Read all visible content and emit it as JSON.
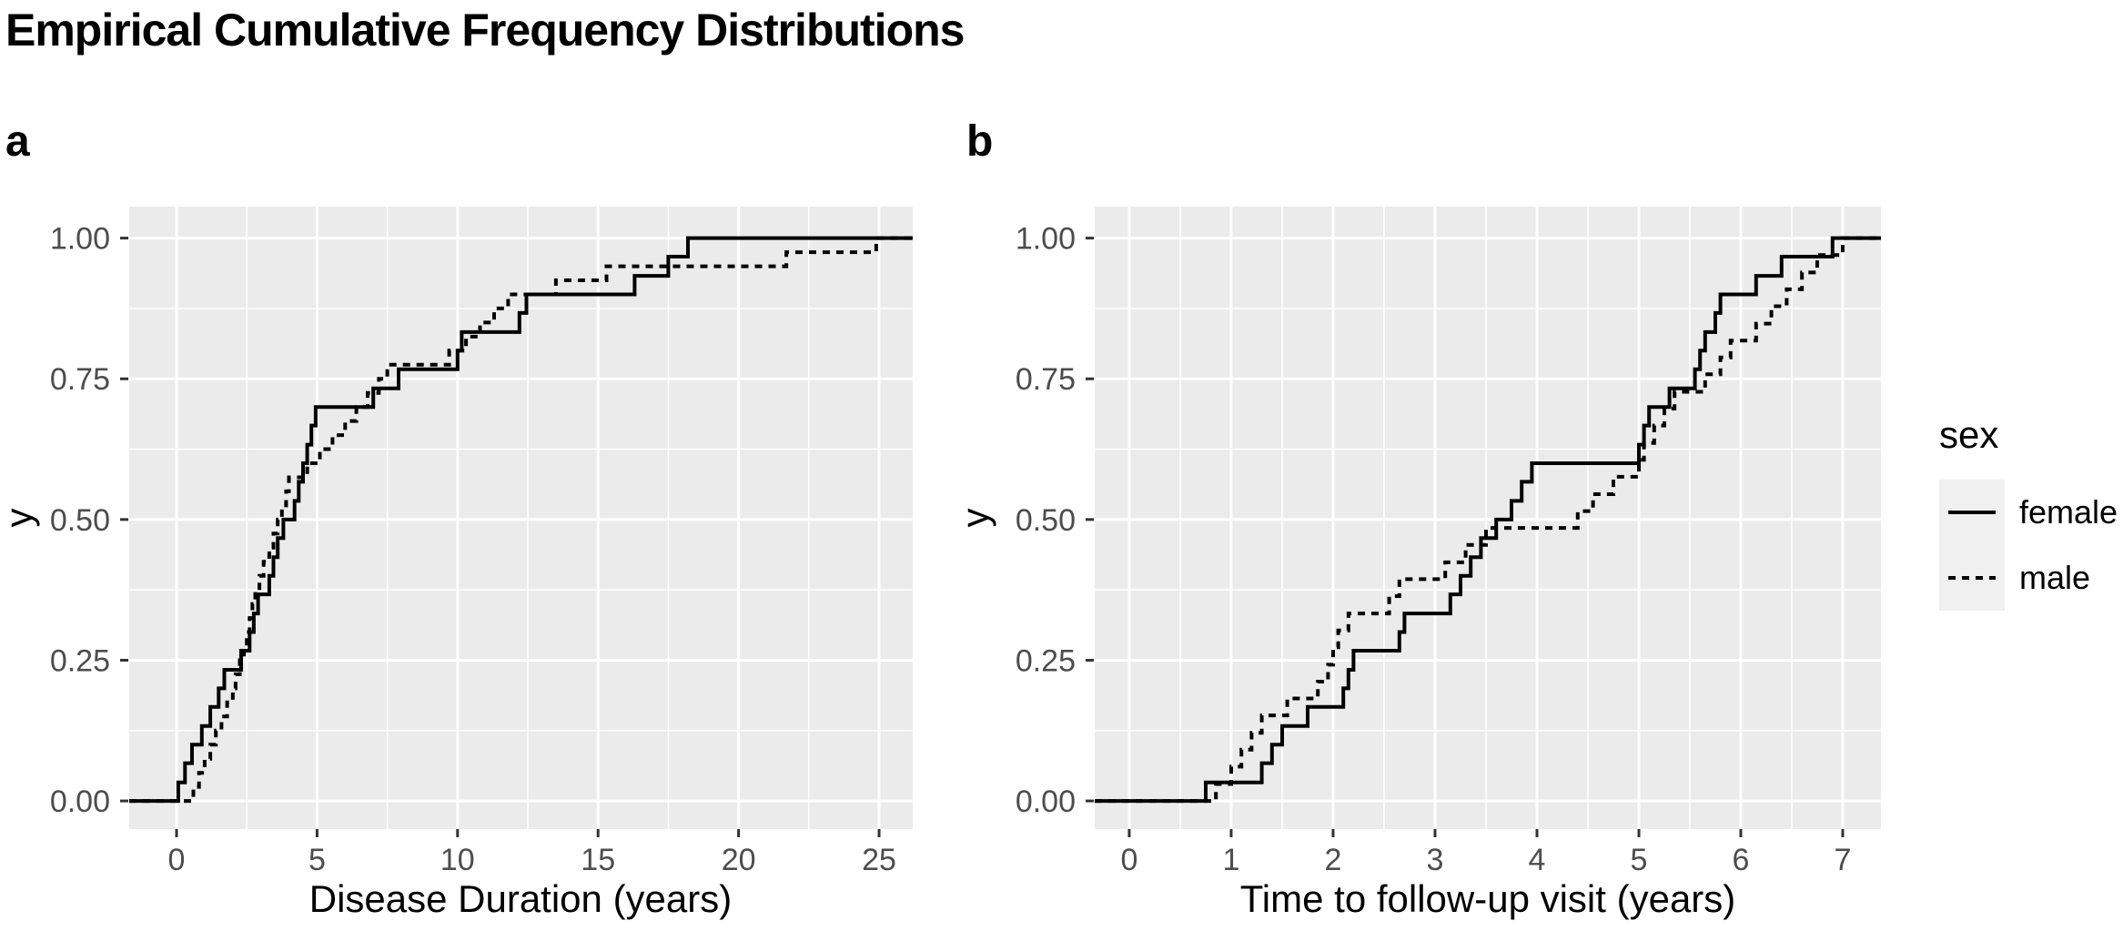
{
  "title": "Empirical Cumulative Frequency Distributions",
  "colors": {
    "panel_bg": "#EBEBEB",
    "gridline": "#FFFFFF",
    "tick_mark": "#333333",
    "tick_label": "#4D4D4D",
    "line": "#000000",
    "legend_key_bg": "#F0F0F0"
  },
  "legend": {
    "title": "sex",
    "items": [
      {
        "label": "female",
        "linetype": "solid"
      },
      {
        "label": "male",
        "linetype": "dashed"
      }
    ]
  },
  "chart_data": [
    {
      "id": "panel-a",
      "tag": "a",
      "type": "line",
      "subtype": "ecdf-step",
      "title": "",
      "xlabel": "Disease Duration (years)",
      "ylabel": "y",
      "xlim": [
        -1.684,
        26.197
      ],
      "ylim": [
        -0.05,
        1.056
      ],
      "grid": true,
      "x_ticks": {
        "values": [
          0,
          5,
          10,
          15,
          20,
          25
        ],
        "labels": [
          "0",
          "5",
          "10",
          "15",
          "20",
          "25"
        ]
      },
      "x_minor": [
        2.5,
        7.5,
        12.5,
        17.5,
        22.5
      ],
      "y_ticks": {
        "values": [
          0,
          0.25,
          0.5,
          0.75,
          1
        ],
        "labels": [
          "0.00",
          "0.25",
          "0.50",
          "0.75",
          "1.00"
        ]
      },
      "y_minor": [
        0.125,
        0.375,
        0.625,
        0.875
      ],
      "series": [
        {
          "name": "female",
          "linetype": "solid",
          "steps": [
            [
              0.06,
              0.033
            ],
            [
              0.3,
              0.067
            ],
            [
              0.55,
              0.1
            ],
            [
              0.9,
              0.133
            ],
            [
              1.2,
              0.167
            ],
            [
              1.5,
              0.2
            ],
            [
              1.7,
              0.233
            ],
            [
              2.3,
              0.267
            ],
            [
              2.6,
              0.3
            ],
            [
              2.75,
              0.333
            ],
            [
              2.9,
              0.367
            ],
            [
              3.3,
              0.4
            ],
            [
              3.45,
              0.433
            ],
            [
              3.6,
              0.467
            ],
            [
              3.8,
              0.5
            ],
            [
              4.2,
              0.533
            ],
            [
              4.35,
              0.567
            ],
            [
              4.5,
              0.6
            ],
            [
              4.65,
              0.633
            ],
            [
              4.8,
              0.667
            ],
            [
              4.95,
              0.7
            ],
            [
              7.0,
              0.733
            ],
            [
              7.9,
              0.767
            ],
            [
              10.0,
              0.8
            ],
            [
              10.15,
              0.833
            ],
            [
              12.2,
              0.867
            ],
            [
              12.45,
              0.9
            ],
            [
              16.3,
              0.933
            ],
            [
              17.5,
              0.967
            ],
            [
              18.2,
              1.0
            ]
          ]
        },
        {
          "name": "male",
          "linetype": "dashed",
          "steps": [
            [
              0.6,
              0.025
            ],
            [
              0.8,
              0.05
            ],
            [
              1.0,
              0.075
            ],
            [
              1.2,
              0.1
            ],
            [
              1.4,
              0.125
            ],
            [
              1.6,
              0.15
            ],
            [
              1.8,
              0.175
            ],
            [
              2.0,
              0.2
            ],
            [
              2.1,
              0.225
            ],
            [
              2.25,
              0.25
            ],
            [
              2.4,
              0.275
            ],
            [
              2.5,
              0.3
            ],
            [
              2.6,
              0.325
            ],
            [
              2.7,
              0.35
            ],
            [
              2.8,
              0.375
            ],
            [
              2.95,
              0.4
            ],
            [
              3.1,
              0.425
            ],
            [
              3.3,
              0.45
            ],
            [
              3.45,
              0.475
            ],
            [
              3.6,
              0.5
            ],
            [
              3.75,
              0.525
            ],
            [
              3.9,
              0.55
            ],
            [
              4.0,
              0.575
            ],
            [
              4.65,
              0.6
            ],
            [
              5.1,
              0.625
            ],
            [
              5.55,
              0.65
            ],
            [
              6.0,
              0.675
            ],
            [
              6.4,
              0.7
            ],
            [
              6.8,
              0.725
            ],
            [
              7.2,
              0.75
            ],
            [
              7.5,
              0.775
            ],
            [
              9.7,
              0.8
            ],
            [
              10.3,
              0.825
            ],
            [
              10.8,
              0.85
            ],
            [
              11.3,
              0.875
            ],
            [
              11.8,
              0.9
            ],
            [
              13.5,
              0.925
            ],
            [
              15.3,
              0.95
            ],
            [
              21.7,
              0.975
            ],
            [
              24.9,
              1.0
            ]
          ]
        }
      ]
    },
    {
      "id": "panel-b",
      "tag": "b",
      "type": "line",
      "subtype": "ecdf-step",
      "title": "",
      "xlabel": "Time to follow-up visit (years)",
      "ylabel": "y",
      "xlim": [
        -0.339,
        7.375
      ],
      "ylim": [
        -0.05,
        1.056
      ],
      "grid": true,
      "x_ticks": {
        "values": [
          0,
          1,
          2,
          3,
          4,
          5,
          6,
          7
        ],
        "labels": [
          "0",
          "1",
          "2",
          "3",
          "4",
          "5",
          "6",
          "7"
        ]
      },
      "x_minor": [
        0.5,
        1.5,
        2.5,
        3.5,
        4.5,
        5.5,
        6.5
      ],
      "y_ticks": {
        "values": [
          0,
          0.25,
          0.5,
          0.75,
          1
        ],
        "labels": [
          "0.00",
          "0.25",
          "0.50",
          "0.75",
          "1.00"
        ]
      },
      "y_minor": [
        0.125,
        0.375,
        0.625,
        0.875
      ],
      "series": [
        {
          "name": "female",
          "linetype": "solid",
          "steps": [
            [
              0.75,
              0.033
            ],
            [
              1.3,
              0.067
            ],
            [
              1.4,
              0.1
            ],
            [
              1.5,
              0.133
            ],
            [
              1.75,
              0.167
            ],
            [
              2.1,
              0.2
            ],
            [
              2.15,
              0.233
            ],
            [
              2.2,
              0.267
            ],
            [
              2.65,
              0.3
            ],
            [
              2.7,
              0.333
            ],
            [
              3.15,
              0.367
            ],
            [
              3.25,
              0.4
            ],
            [
              3.35,
              0.433
            ],
            [
              3.45,
              0.467
            ],
            [
              3.6,
              0.5
            ],
            [
              3.75,
              0.533
            ],
            [
              3.85,
              0.567
            ],
            [
              3.95,
              0.6
            ],
            [
              5.0,
              0.633
            ],
            [
              5.05,
              0.667
            ],
            [
              5.1,
              0.7
            ],
            [
              5.3,
              0.733
            ],
            [
              5.55,
              0.767
            ],
            [
              5.6,
              0.8
            ],
            [
              5.65,
              0.833
            ],
            [
              5.75,
              0.867
            ],
            [
              5.8,
              0.9
            ],
            [
              6.15,
              0.933
            ],
            [
              6.4,
              0.967
            ],
            [
              6.9,
              1.0
            ]
          ]
        },
        {
          "name": "male",
          "linetype": "dashed",
          "steps": [
            [
              0.85,
              0.03
            ],
            [
              1.0,
              0.061
            ],
            [
              1.1,
              0.091
            ],
            [
              1.2,
              0.121
            ],
            [
              1.3,
              0.152
            ],
            [
              1.55,
              0.182
            ],
            [
              1.85,
              0.212
            ],
            [
              1.95,
              0.242
            ],
            [
              2.0,
              0.273
            ],
            [
              2.05,
              0.303
            ],
            [
              2.15,
              0.333
            ],
            [
              2.55,
              0.364
            ],
            [
              2.65,
              0.394
            ],
            [
              3.1,
              0.424
            ],
            [
              3.3,
              0.455
            ],
            [
              3.5,
              0.485
            ],
            [
              4.4,
              0.515
            ],
            [
              4.55,
              0.545
            ],
            [
              4.75,
              0.576
            ],
            [
              5.0,
              0.606
            ],
            [
              5.05,
              0.636
            ],
            [
              5.15,
              0.667
            ],
            [
              5.25,
              0.697
            ],
            [
              5.35,
              0.727
            ],
            [
              5.65,
              0.758
            ],
            [
              5.8,
              0.788
            ],
            [
              5.9,
              0.818
            ],
            [
              6.15,
              0.848
            ],
            [
              6.3,
              0.879
            ],
            [
              6.45,
              0.909
            ],
            [
              6.6,
              0.939
            ],
            [
              6.75,
              0.97
            ],
            [
              7.0,
              1.0
            ]
          ]
        }
      ]
    }
  ]
}
